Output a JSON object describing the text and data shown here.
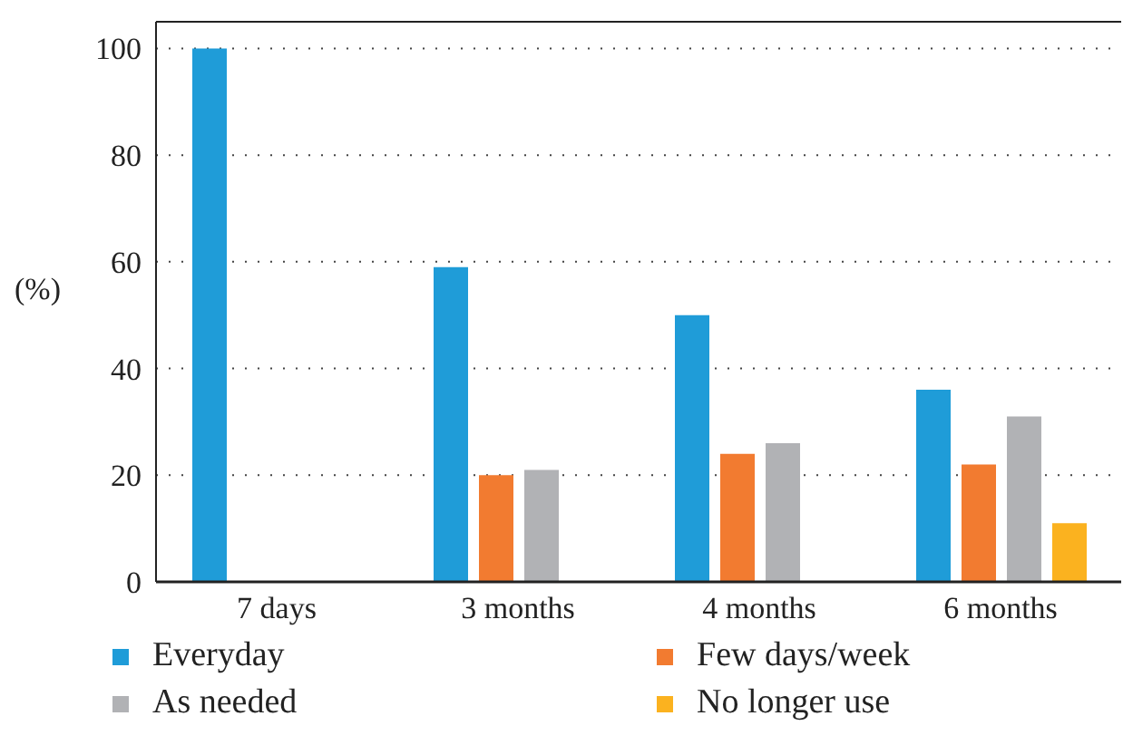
{
  "chart_data": {
    "type": "bar",
    "ylabel": "(%)",
    "categories": [
      "7 days",
      "3 months",
      "4 months",
      "6 months"
    ],
    "series": [
      {
        "name": "Everyday",
        "color": "#1f9cd8",
        "values": [
          100,
          59,
          50,
          36
        ]
      },
      {
        "name": "Few days/week",
        "color": "#f27b30",
        "values": [
          null,
          20,
          24,
          22
        ]
      },
      {
        "name": "As needed",
        "color": "#b1b2b5",
        "values": [
          null,
          21,
          26,
          31
        ]
      },
      {
        "name": "No longer use",
        "color": "#fbb21f",
        "values": [
          null,
          null,
          null,
          11
        ]
      }
    ],
    "ylim": [
      0,
      105
    ],
    "yticks": [
      0,
      20,
      40,
      60,
      80,
      100
    ],
    "grid": "y",
    "legend": "bottom"
  }
}
